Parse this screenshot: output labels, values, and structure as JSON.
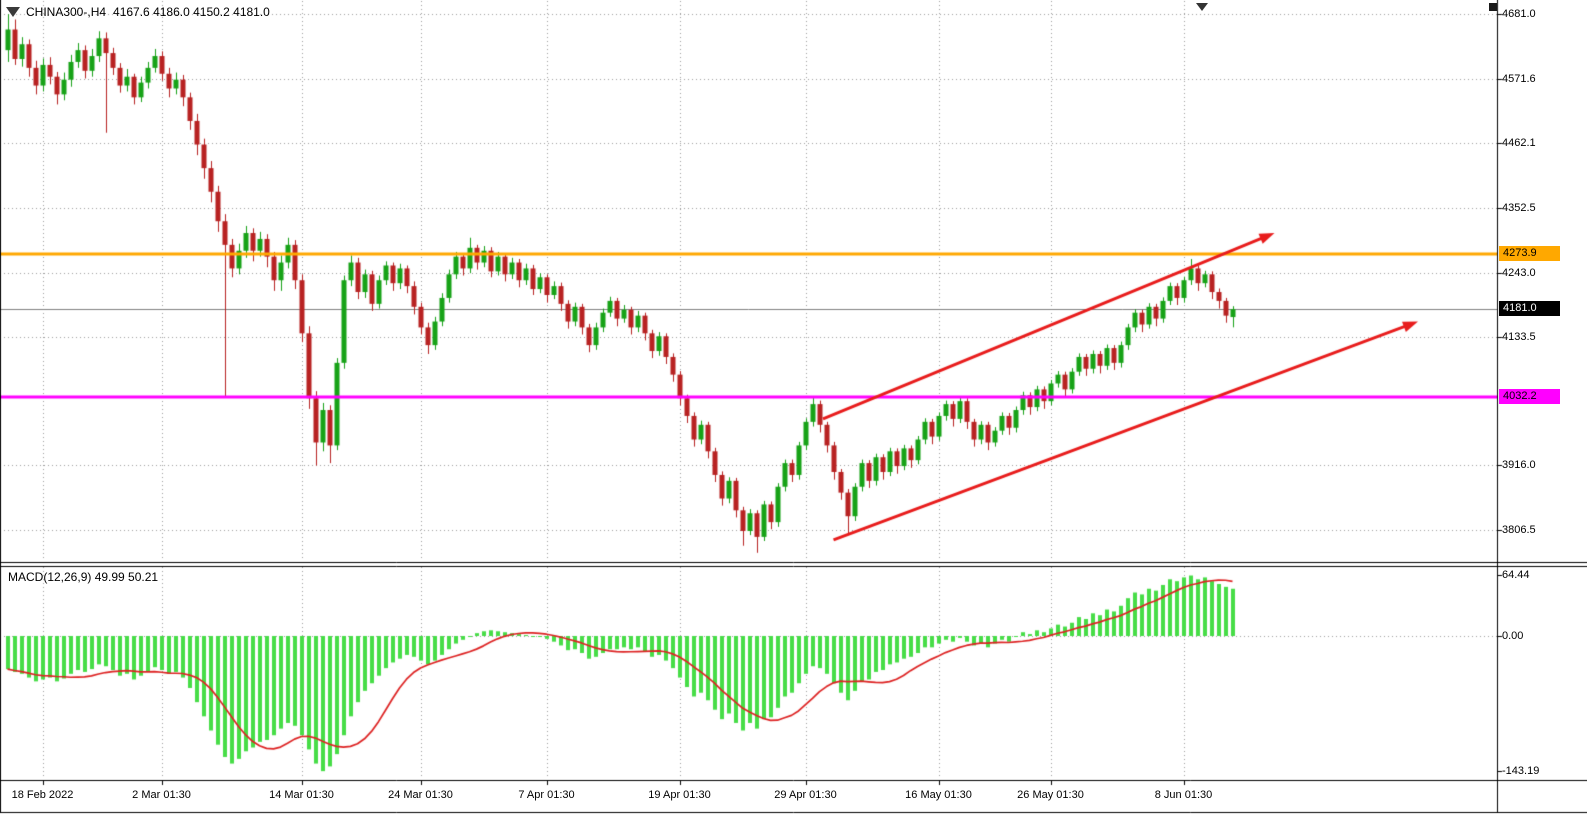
{
  "header": {
    "symbol_timeframe": "CHINA300-,H4",
    "ohlc_text": "4167.6 4186.0 4150.2 4181.0"
  },
  "macd_panel": {
    "label": "MACD(12,26,9) 49.99 50.21"
  },
  "colors": {
    "bg": "#ffffff",
    "bull": "#17a217",
    "bear": "#b82222",
    "macd_bar": "#47dd47",
    "macd_signal": "#dd2222",
    "grid": "#9a9a9a",
    "border": "#000000",
    "current_price_line": "#808080",
    "arrow": "#e81c1c"
  },
  "chart_data": {
    "type": "candlestick",
    "symbol": "CHINA300-",
    "timeframe": "H4",
    "current_bar": {
      "open": 4167.6,
      "high": 4186.0,
      "low": 4150.2,
      "close": 4181.0
    },
    "price_axis_labels": [
      {
        "price": 4681.0,
        "text": "4681.0"
      },
      {
        "price": 4571.6,
        "text": "4571.6"
      },
      {
        "price": 4462.1,
        "text": "4462.1"
      },
      {
        "price": 4352.5,
        "text": "4352.5"
      },
      {
        "price": 4243.0,
        "text": "4243.0"
      },
      {
        "price": 4133.5,
        "text": "4133.5"
      },
      {
        "price": 3916.0,
        "text": "3916.0"
      },
      {
        "price": 3806.5,
        "text": "3806.5"
      }
    ],
    "price_tags": [
      {
        "price": 4273.9,
        "text": "4273.9",
        "bg": "#ffa800",
        "fg": "#000000",
        "name": "resistance-price-tag",
        "interactable": true
      },
      {
        "price": 4181.0,
        "text": "4181.0",
        "bg": "#000000",
        "fg": "#ffffff",
        "name": "current-price-tag",
        "interactable": false
      },
      {
        "price": 4032.2,
        "text": "4032.2",
        "bg": "#ff00ff",
        "fg": "#000000",
        "name": "support-price-tag",
        "interactable": true
      }
    ],
    "hlines": [
      {
        "price": 4273.9,
        "color": "#ffa800",
        "width": 3,
        "name": "orange-resistance-line"
      },
      {
        "price": 4032.2,
        "color": "#ff00ff",
        "width": 3,
        "name": "magenta-support-line"
      }
    ],
    "current_price_line": 4181.0,
    "trend_arrows": [
      {
        "i1": 116.5,
        "p1": 3995,
        "i2": 181,
        "p2": 4310
      },
      {
        "i1": 118,
        "p1": 3790,
        "i2": 201.5,
        "p2": 4160
      }
    ],
    "x_labels": [
      {
        "i": 5,
        "text": "18 Feb 2022"
      },
      {
        "i": 22,
        "text": "2 Mar 01:30"
      },
      {
        "i": 42,
        "text": "14 Mar 01:30"
      },
      {
        "i": 59,
        "text": "24 Mar 01:30"
      },
      {
        "i": 77,
        "text": "7 Apr 01:30"
      },
      {
        "i": 96,
        "text": "19 Apr 01:30"
      },
      {
        "i": 114,
        "text": "29 Apr 01:30"
      },
      {
        "i": 133,
        "text": "16 May 01:30"
      },
      {
        "i": 149,
        "text": "26 May 01:30"
      },
      {
        "i": 168,
        "text": "8 Jun 01:30"
      }
    ],
    "candles_ohlc": [
      [
        4620,
        4681,
        4600,
        4655
      ],
      [
        4655,
        4672,
        4595,
        4605
      ],
      [
        4605,
        4642,
        4592,
        4630
      ],
      [
        4630,
        4638,
        4575,
        4590
      ],
      [
        4590,
        4602,
        4545,
        4560
      ],
      [
        4560,
        4606,
        4550,
        4595
      ],
      [
        4595,
        4608,
        4562,
        4575
      ],
      [
        4575,
        4583,
        4528,
        4545
      ],
      [
        4545,
        4582,
        4535,
        4570
      ],
      [
        4570,
        4612,
        4558,
        4600
      ],
      [
        4600,
        4632,
        4590,
        4620
      ],
      [
        4620,
        4628,
        4572,
        4585
      ],
      [
        4585,
        4622,
        4575,
        4610
      ],
      [
        4610,
        4652,
        4600,
        4640
      ],
      [
        4640,
        4650,
        4480,
        4615
      ],
      [
        4615,
        4624,
        4578,
        4590
      ],
      [
        4590,
        4598,
        4548,
        4560
      ],
      [
        4560,
        4588,
        4550,
        4575
      ],
      [
        4575,
        4580,
        4528,
        4540
      ],
      [
        4540,
        4575,
        4532,
        4565
      ],
      [
        4565,
        4600,
        4555,
        4590
      ],
      [
        4590,
        4622,
        4582,
        4610
      ],
      [
        4610,
        4618,
        4568,
        4580
      ],
      [
        4580,
        4590,
        4540,
        4555
      ],
      [
        4555,
        4582,
        4545,
        4570
      ],
      [
        4570,
        4578,
        4525,
        4540
      ],
      [
        4540,
        4548,
        4485,
        4500
      ],
      [
        4500,
        4512,
        4442,
        4460
      ],
      [
        4460,
        4470,
        4402,
        4420
      ],
      [
        4420,
        4432,
        4362,
        4380
      ],
      [
        4380,
        4390,
        4312,
        4330
      ],
      [
        4330,
        4342,
        4032,
        4290
      ],
      [
        4290,
        4300,
        4235,
        4250
      ],
      [
        4250,
        4292,
        4240,
        4280
      ],
      [
        4280,
        4322,
        4268,
        4310
      ],
      [
        4310,
        4318,
        4262,
        4280
      ],
      [
        4280,
        4312,
        4270,
        4300
      ],
      [
        4300,
        4308,
        4252,
        4270
      ],
      [
        4270,
        4278,
        4212,
        4230
      ],
      [
        4230,
        4272,
        4212,
        4260
      ],
      [
        4260,
        4302,
        4250,
        4290
      ],
      [
        4290,
        4298,
        4215,
        4230
      ],
      [
        4230,
        4240,
        4125,
        4140
      ],
      [
        4140,
        4152,
        4012,
        4030
      ],
      [
        4030,
        4042,
        3916,
        3955
      ],
      [
        3955,
        4022,
        3940,
        4010
      ],
      [
        4010,
        4018,
        3920,
        3950
      ],
      [
        3950,
        4098,
        3942,
        4090
      ],
      [
        4090,
        4238,
        4080,
        4230
      ],
      [
        4230,
        4272,
        4220,
        4260
      ],
      [
        4260,
        4268,
        4198,
        4210
      ],
      [
        4210,
        4248,
        4200,
        4240
      ],
      [
        4240,
        4246,
        4178,
        4190
      ],
      [
        4190,
        4238,
        4182,
        4230
      ],
      [
        4230,
        4262,
        4222,
        4255
      ],
      [
        4255,
        4260,
        4212,
        4225
      ],
      [
        4225,
        4258,
        4215,
        4250
      ],
      [
        4250,
        4255,
        4208,
        4220
      ],
      [
        4220,
        4228,
        4172,
        4185
      ],
      [
        4185,
        4192,
        4138,
        4150
      ],
      [
        4150,
        4158,
        4105,
        4120
      ],
      [
        4120,
        4168,
        4112,
        4160
      ],
      [
        4160,
        4208,
        4152,
        4200
      ],
      [
        4200,
        4248,
        4192,
        4240
      ],
      [
        4240,
        4278,
        4232,
        4270
      ],
      [
        4270,
        4276,
        4238,
        4250
      ],
      [
        4250,
        4302,
        4242,
        4285
      ],
      [
        4285,
        4290,
        4248,
        4260
      ],
      [
        4260,
        4288,
        4252,
        4280
      ],
      [
        4280,
        4286,
        4235,
        4245
      ],
      [
        4245,
        4278,
        4238,
        4270
      ],
      [
        4270,
        4275,
        4228,
        4240
      ],
      [
        4240,
        4268,
        4232,
        4260
      ],
      [
        4260,
        4266,
        4218,
        4230
      ],
      [
        4230,
        4258,
        4222,
        4250
      ],
      [
        4250,
        4256,
        4205,
        4215
      ],
      [
        4215,
        4242,
        4208,
        4235
      ],
      [
        4235,
        4240,
        4192,
        4205
      ],
      [
        4205,
        4228,
        4198,
        4220
      ],
      [
        4220,
        4226,
        4178,
        4190
      ],
      [
        4190,
        4196,
        4148,
        4160
      ],
      [
        4160,
        4192,
        4152,
        4185
      ],
      [
        4185,
        4190,
        4138,
        4150
      ],
      [
        4150,
        4156,
        4108,
        4120
      ],
      [
        4120,
        4158,
        4112,
        4150
      ],
      [
        4150,
        4182,
        4142,
        4175
      ],
      [
        4175,
        4202,
        4168,
        4195
      ],
      [
        4195,
        4200,
        4152,
        4165
      ],
      [
        4165,
        4188,
        4158,
        4180
      ],
      [
        4180,
        4185,
        4138,
        4150
      ],
      [
        4150,
        4178,
        4142,
        4170
      ],
      [
        4170,
        4175,
        4128,
        4140
      ],
      [
        4140,
        4146,
        4098,
        4110
      ],
      [
        4110,
        4142,
        4102,
        4135
      ],
      [
        4135,
        4140,
        4088,
        4100
      ],
      [
        4100,
        4106,
        4058,
        4070
      ],
      [
        4070,
        4076,
        4018,
        4030
      ],
      [
        4030,
        4036,
        3988,
        4000
      ],
      [
        4000,
        4006,
        3948,
        3960
      ],
      [
        3960,
        3992,
        3952,
        3985
      ],
      [
        3985,
        3990,
        3928,
        3940
      ],
      [
        3940,
        3946,
        3888,
        3900
      ],
      [
        3900,
        3906,
        3848,
        3860
      ],
      [
        3860,
        3896,
        3852,
        3890
      ],
      [
        3890,
        3895,
        3828,
        3840
      ],
      [
        3840,
        3846,
        3780,
        3805
      ],
      [
        3805,
        3842,
        3798,
        3835
      ],
      [
        3835,
        3840,
        3768,
        3795
      ],
      [
        3795,
        3856,
        3788,
        3850
      ],
      [
        3850,
        3855,
        3808,
        3820
      ],
      [
        3820,
        3886,
        3812,
        3880
      ],
      [
        3880,
        3926,
        3872,
        3920
      ],
      [
        3920,
        3926,
        3888,
        3900
      ],
      [
        3900,
        3956,
        3892,
        3950
      ],
      [
        3950,
        3996,
        3942,
        3990
      ],
      [
        3990,
        4032,
        3982,
        4020
      ],
      [
        4020,
        4026,
        3972,
        3985
      ],
      [
        3985,
        3990,
        3938,
        3950
      ],
      [
        3950,
        3956,
        3892,
        3905
      ],
      [
        3905,
        3910,
        3858,
        3870
      ],
      [
        3870,
        3876,
        3798,
        3830
      ],
      [
        3830,
        3886,
        3822,
        3880
      ],
      [
        3880,
        3926,
        3872,
        3920
      ],
      [
        3920,
        3925,
        3878,
        3890
      ],
      [
        3890,
        3936,
        3882,
        3930
      ],
      [
        3930,
        3935,
        3892,
        3905
      ],
      [
        3905,
        3946,
        3898,
        3940
      ],
      [
        3940,
        3945,
        3902,
        3915
      ],
      [
        3915,
        3951,
        3908,
        3945
      ],
      [
        3945,
        3950,
        3912,
        3925
      ],
      [
        3925,
        3966,
        3918,
        3960
      ],
      [
        3960,
        3996,
        3952,
        3990
      ],
      [
        3990,
        3995,
        3952,
        3965
      ],
      [
        3965,
        4006,
        3958,
        4000
      ],
      [
        4000,
        4026,
        3992,
        4020
      ],
      [
        4020,
        4025,
        3982,
        3995
      ],
      [
        3995,
        4031,
        3988,
        4025
      ],
      [
        4025,
        4030,
        3978,
        3990
      ],
      [
        3990,
        3995,
        3948,
        3960
      ],
      [
        3960,
        3991,
        3952,
        3985
      ],
      [
        3985,
        3990,
        3942,
        3955
      ],
      [
        3955,
        3981,
        3948,
        3975
      ],
      [
        3975,
        4006,
        3968,
        4000
      ],
      [
        4000,
        4005,
        3968,
        3980
      ],
      [
        3980,
        4016,
        3972,
        4010
      ],
      [
        4010,
        4041,
        4002,
        4035
      ],
      [
        4035,
        4040,
        4002,
        4015
      ],
      [
        4015,
        4051,
        4008,
        4045
      ],
      [
        4045,
        4050,
        4012,
        4025
      ],
      [
        4025,
        4061,
        4018,
        4055
      ],
      [
        4055,
        4076,
        4048,
        4070
      ],
      [
        4070,
        4075,
        4032,
        4045
      ],
      [
        4045,
        4081,
        4038,
        4075
      ],
      [
        4075,
        4106,
        4068,
        4100
      ],
      [
        4100,
        4105,
        4068,
        4080
      ],
      [
        4080,
        4111,
        4072,
        4105
      ],
      [
        4105,
        4110,
        4072,
        4085
      ],
      [
        4085,
        4121,
        4078,
        4115
      ],
      [
        4115,
        4120,
        4078,
        4090
      ],
      [
        4090,
        4126,
        4082,
        4120
      ],
      [
        4120,
        4156,
        4112,
        4150
      ],
      [
        4150,
        4181,
        4142,
        4175
      ],
      [
        4175,
        4180,
        4142,
        4155
      ],
      [
        4155,
        4191,
        4148,
        4185
      ],
      [
        4185,
        4190,
        4152,
        4165
      ],
      [
        4165,
        4201,
        4158,
        4195
      ],
      [
        4195,
        4226,
        4188,
        4220
      ],
      [
        4220,
        4225,
        4188,
        4200
      ],
      [
        4200,
        4236,
        4192,
        4230
      ],
      [
        4230,
        4266,
        4222,
        4250
      ],
      [
        4250,
        4255,
        4212,
        4225
      ],
      [
        4225,
        4246,
        4218,
        4240
      ],
      [
        4240,
        4245,
        4198,
        4210
      ],
      [
        4210,
        4216,
        4182,
        4195
      ],
      [
        4195,
        4200,
        4158,
        4170
      ],
      [
        4167.6,
        4186.0,
        4150.2,
        4181.0
      ]
    ],
    "macd": {
      "params": [
        12,
        26,
        9
      ],
      "value": 49.99,
      "signal": 50.21,
      "signal_sma_period": 9,
      "axis_labels": [
        {
          "value": 64.44,
          "text": "64.44"
        },
        {
          "value": 0,
          "text": "0.00"
        },
        {
          "value": -143.19,
          "text": "-143.19"
        }
      ],
      "histogram": [
        -35,
        -38,
        -40,
        -44,
        -48,
        -46,
        -44,
        -48,
        -45,
        -40,
        -36,
        -38,
        -35,
        -30,
        -32,
        -36,
        -42,
        -40,
        -46,
        -42,
        -38,
        -33,
        -36,
        -40,
        -38,
        -44,
        -55,
        -70,
        -85,
        -100,
        -115,
        -128,
        -135,
        -130,
        -122,
        -118,
        -112,
        -110,
        -105,
        -98,
        -92,
        -95,
        -105,
        -120,
        -135,
        -143,
        -138,
        -125,
        -105,
        -85,
        -70,
        -58,
        -50,
        -42,
        -34,
        -28,
        -24,
        -20,
        -22,
        -26,
        -30,
        -26,
        -20,
        -14,
        -8,
        -4,
        0,
        3,
        5,
        6,
        5,
        4,
        3,
        2,
        1,
        0,
        -1,
        -3,
        -6,
        -10,
        -15,
        -14,
        -18,
        -24,
        -22,
        -18,
        -14,
        -14,
        -12,
        -14,
        -12,
        -16,
        -22,
        -20,
        -26,
        -34,
        -44,
        -54,
        -64,
        -60,
        -68,
        -78,
        -88,
        -82,
        -92,
        -100,
        -92,
        -98,
        -88,
        -86,
        -76,
        -64,
        -60,
        -50,
        -40,
        -32,
        -34,
        -40,
        -50,
        -60,
        -68,
        -58,
        -48,
        -46,
        -38,
        -36,
        -30,
        -28,
        -24,
        -22,
        -18,
        -12,
        -12,
        -8,
        -4,
        -6,
        -2,
        -6,
        -10,
        -8,
        -12,
        -8,
        -4,
        -6,
        0,
        4,
        2,
        6,
        4,
        8,
        12,
        10,
        14,
        20,
        18,
        24,
        22,
        28,
        26,
        32,
        40,
        46,
        44,
        50,
        48,
        54,
        60,
        58,
        62,
        64,
        60,
        62,
        58,
        55,
        52,
        49.99
      ]
    }
  }
}
